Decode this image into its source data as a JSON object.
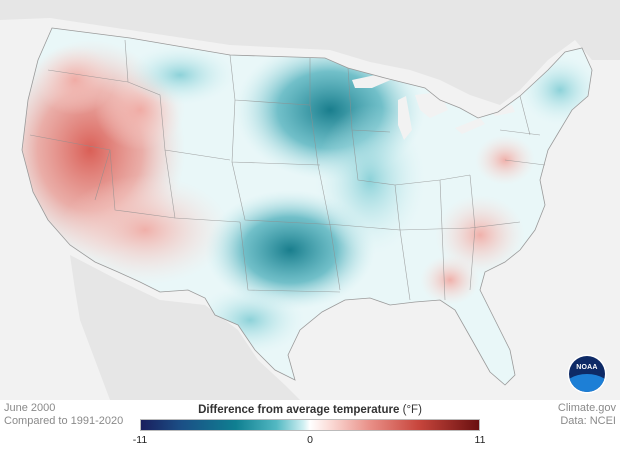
{
  "map": {
    "period": "June 2000",
    "comparison": "Compared to 1991-2020",
    "credit_site": "Climate.gov",
    "credit_data": "Data: NCEI",
    "logo_text": "NOAA"
  },
  "legend": {
    "title": "Difference from average temperature",
    "unit": "(°F)",
    "min_label": "-11",
    "mid_label": "0",
    "max_label": "11",
    "range": [
      -11,
      11
    ]
  },
  "colors": {
    "cold_extreme": "#1a1f5e",
    "cold": "#0f7f91",
    "neutral": "#ffffff",
    "warm": "#e88e86",
    "warm_extreme": "#6a1010",
    "land_outside": "#e6e6e6",
    "water": "#f2f2f2"
  }
}
